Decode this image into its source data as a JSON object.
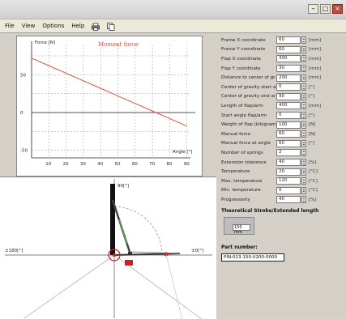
{
  "window": {
    "minimize": "–",
    "maximize": "□",
    "close": "×"
  },
  "menu": {
    "items": [
      "File",
      "View",
      "Options",
      "Help"
    ],
    "icons": [
      "print-icon",
      "copy-icon"
    ]
  },
  "colors": {
    "series": "#e04e3c",
    "grid": "#9a9a9a",
    "accent": "#d02020",
    "link": "#5aa050"
  },
  "chart_data": {
    "type": "line",
    "title": "Moment force",
    "ylabel": "Force [N]",
    "xlabel": "Angle [°]",
    "x": [
      0,
      10,
      20,
      30,
      40,
      50,
      60,
      70,
      80,
      90
    ],
    "series": [
      {
        "name": "",
        "values": [
          72,
          62,
          52,
          42,
          32,
          22,
          12,
          2,
          -8,
          -18
        ]
      }
    ],
    "y_ticks": [
      50,
      0,
      -50
    ],
    "x_ticks": [
      10,
      20,
      30,
      40,
      50,
      60,
      70,
      80,
      90
    ],
    "xlim": [
      0,
      92
    ],
    "ylim": [
      -60,
      90
    ],
    "grid": true
  },
  "diagram": {
    "top_label": "90[°]",
    "left_label": "±180[°]",
    "right_label": "±0[°]"
  },
  "params": [
    {
      "label": "Frame X coordinate",
      "value": "60",
      "unit": "[mm]"
    },
    {
      "label": "Frame Y coordinate",
      "value": "60",
      "unit": "[mm]"
    },
    {
      "label": "Flap X coordinate",
      "value": "300",
      "unit": "[mm]"
    },
    {
      "label": "Flap Y coordinate",
      "value": "30",
      "unit": "[mm]"
    },
    {
      "label": "Distance to center of gravity",
      "value": "200",
      "unit": "[mm]"
    },
    {
      "label": "Center of gravity start angle",
      "value": "0",
      "unit": "[°]"
    },
    {
      "label": "Center of gravity end angle",
      "value": "90",
      "unit": "[°]"
    },
    {
      "label": "Length of flap/arm",
      "value": "400",
      "unit": "[mm]"
    },
    {
      "label": "Start angle flap/arm",
      "value": "0",
      "unit": "[°]"
    },
    {
      "label": "Weight of flap (kilogram/s)",
      "value": "100",
      "unit": "[N]"
    },
    {
      "label": "Manual force",
      "value": "60",
      "unit": "[N]"
    },
    {
      "label": "Manual force at angle",
      "value": "60",
      "unit": "[°]"
    },
    {
      "label": "Number of springs",
      "value": "2",
      "unit": ""
    },
    {
      "label": "Extension tolerance",
      "value": "40",
      "unit": "[%]"
    },
    {
      "label": "Temperature",
      "value": "20",
      "unit": "[°C]"
    },
    {
      "label": "Max. temperature",
      "value": "120",
      "unit": "[°C]"
    },
    {
      "label": "Min. temperature",
      "value": "0",
      "unit": "[°C]"
    },
    {
      "label": "Progressivity",
      "value": "40",
      "unit": "[%]"
    }
  ],
  "stroke_section": {
    "title": "Theoretical Stroke/Extended length",
    "value": "150 mm"
  },
  "part_number": {
    "title": "Part number:",
    "value": "PIN-013-150-X200-0000"
  }
}
